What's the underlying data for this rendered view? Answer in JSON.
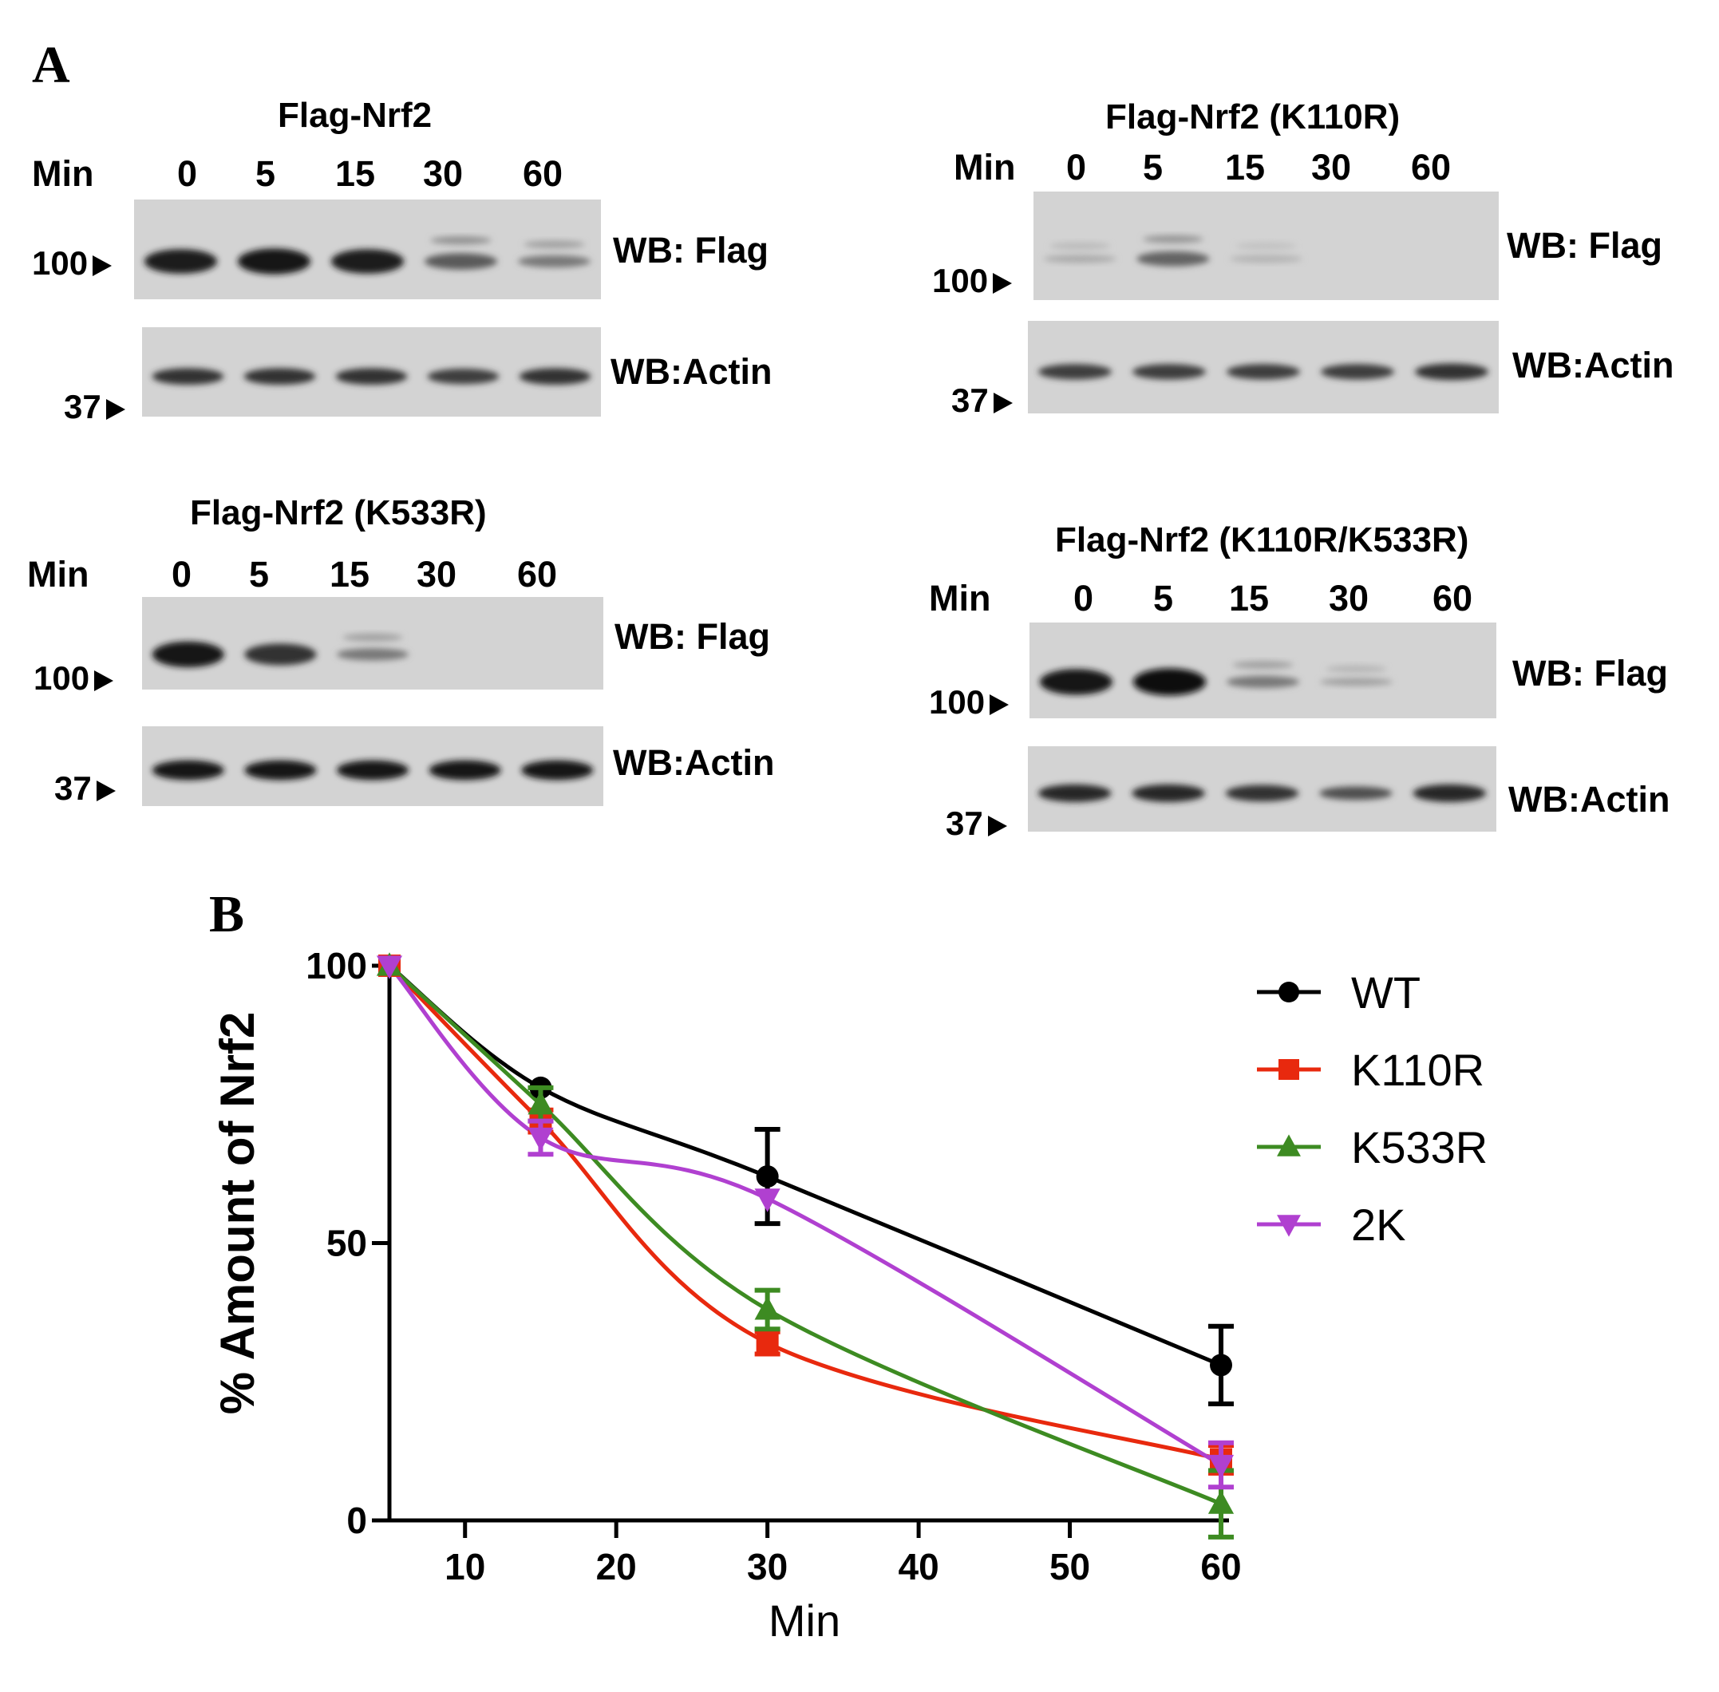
{
  "panel_a": {
    "letter": "A",
    "blots": [
      {
        "title": "Flag-Nrf2",
        "min_label": "Min",
        "lanes": [
          "0",
          "5",
          "15",
          "30",
          "60"
        ],
        "top_label": "WB: Flag",
        "bottom_label": "WB:Actin",
        "marker_top": "100",
        "marker_bottom": "37",
        "flag_intensity": [
          0.9,
          0.95,
          0.9,
          0.6,
          0.45
        ],
        "actin_intensity": [
          0.8,
          0.8,
          0.8,
          0.75,
          0.8
        ]
      },
      {
        "title": "Flag-Nrf2 (K110R)",
        "min_label": "Min",
        "lanes": [
          "0",
          "5",
          "15",
          "30",
          "60"
        ],
        "top_label": "WB: Flag",
        "bottom_label": "WB:Actin",
        "marker_top": "100",
        "marker_bottom": "37",
        "flag_intensity": [
          0.2,
          0.55,
          0.15,
          0.0,
          0.0
        ],
        "actin_intensity": [
          0.75,
          0.75,
          0.75,
          0.75,
          0.8
        ]
      },
      {
        "title": "Flag-Nrf2 (K533R)",
        "min_label": "Min",
        "lanes": [
          "0",
          "5",
          "15",
          "30",
          "60"
        ],
        "top_label": "WB: Flag",
        "bottom_label": "WB:Actin",
        "marker_top": "100",
        "marker_bottom": "37",
        "flag_intensity": [
          0.95,
          0.8,
          0.45,
          0.0,
          0.0
        ],
        "actin_intensity": [
          0.95,
          0.95,
          0.95,
          0.95,
          0.95
        ]
      },
      {
        "title": "Flag-Nrf2 (K110R/K533R)",
        "min_label": "Min",
        "lanes": [
          "0",
          "5",
          "15",
          "30",
          "60"
        ],
        "top_label": "WB: Flag",
        "bottom_label": "WB:Actin",
        "marker_top": "100",
        "marker_bottom": "37",
        "flag_intensity": [
          0.95,
          1.0,
          0.45,
          0.25,
          0.0
        ],
        "actin_intensity": [
          0.85,
          0.85,
          0.8,
          0.65,
          0.85
        ]
      }
    ]
  },
  "panel_b": {
    "letter": "B",
    "chart_data": {
      "type": "line",
      "xlabel": "Min",
      "ylabel": "% Amount of Nrf2",
      "xlim": [
        5,
        62
      ],
      "ylim": [
        0,
        100
      ],
      "xticks": [
        10,
        20,
        30,
        40,
        50,
        60
      ],
      "yticks": [
        0,
        50,
        100
      ],
      "legend_position": "top-right",
      "x": [
        5,
        15,
        30,
        60
      ],
      "series": [
        {
          "name": "WT",
          "color": "#000000",
          "marker": "circle",
          "values": [
            100,
            78,
            62,
            28
          ],
          "errors": [
            0,
            0,
            8.5,
            7
          ]
        },
        {
          "name": "K110R",
          "color": "#e8290e",
          "marker": "square",
          "values": [
            100,
            72,
            32,
            11
          ],
          "errors": [
            0,
            2,
            2,
            2.5
          ]
        },
        {
          "name": "K533R",
          "color": "#3d8b22",
          "marker": "triangle-up",
          "values": [
            100,
            75,
            38,
            3
          ],
          "errors": [
            0,
            3,
            3.5,
            6
          ]
        },
        {
          "name": "2K",
          "color": "#b040d0",
          "marker": "triangle-down",
          "values": [
            100,
            69,
            58,
            10
          ],
          "errors": [
            0,
            3,
            0,
            4
          ]
        }
      ]
    }
  }
}
